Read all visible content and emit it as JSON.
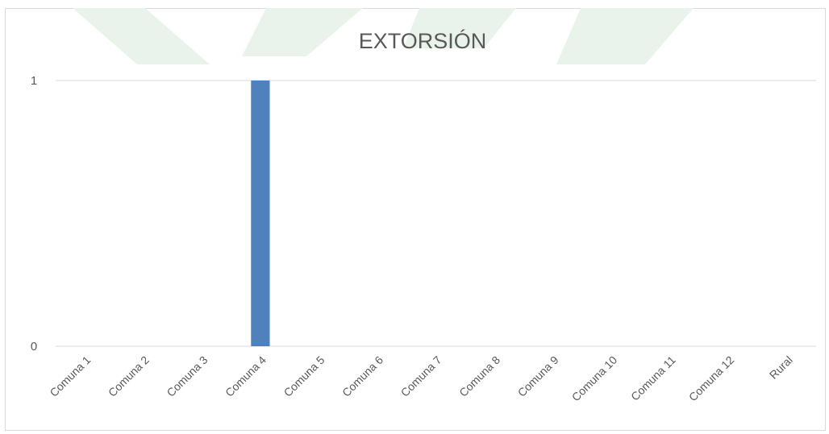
{
  "chart_data": {
    "type": "bar",
    "title": "EXTORSIÓN",
    "xlabel": "",
    "ylabel": "",
    "categories": [
      "Comuna 1",
      "Comuna 2",
      "Comuna 3",
      "Comuna 4",
      "Comuna 5",
      "Comuna 6",
      "Comuna 7",
      "Comuna 8",
      "Comuna 9",
      "Comuna 10",
      "Comuna 11",
      "Comuna 12",
      "Rural"
    ],
    "values": [
      0,
      0,
      0,
      1,
      0,
      0,
      0,
      0,
      0,
      0,
      0,
      0,
      0
    ],
    "ylim": [
      0,
      1
    ],
    "yticks": [
      "0",
      "1"
    ],
    "grid": true,
    "legend": "none",
    "bar_color": "#4f81bd"
  }
}
